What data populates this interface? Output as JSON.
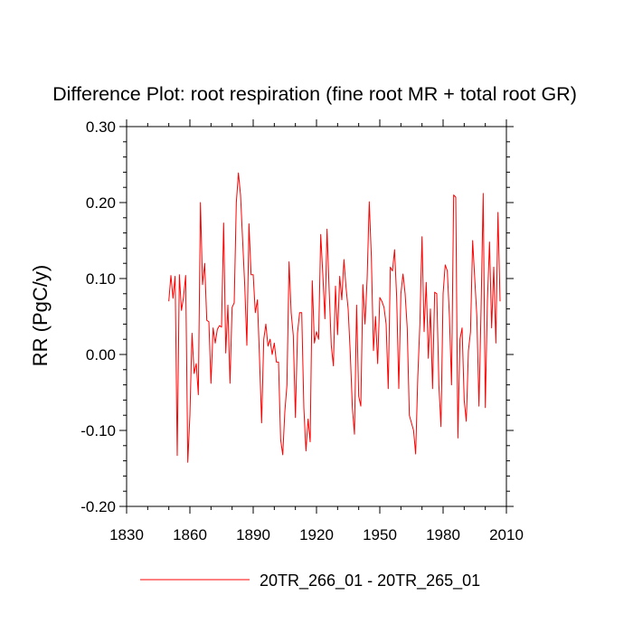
{
  "chart_data": {
    "type": "line",
    "title": "Difference Plot: root respiration (fine root MR + total root GR)",
    "xlabel": "",
    "ylabel": "RR  (PgC/y)",
    "xlim": [
      1830,
      2010
    ],
    "ylim": [
      -0.2,
      0.3
    ],
    "x_ticks": [
      1830,
      1860,
      1890,
      1920,
      1950,
      1980,
      2010
    ],
    "x_tick_labels": [
      "1830",
      "1860",
      "1890",
      "1920",
      "1950",
      "1980",
      "2010"
    ],
    "y_ticks": [
      -0.2,
      -0.1,
      0.0,
      0.1,
      0.2,
      0.3
    ],
    "y_tick_labels": [
      "-0.20",
      "-0.10",
      "0.00",
      "0.10",
      "0.20",
      "0.30"
    ],
    "grid": false,
    "legend_position": "bottom-center",
    "colors": {
      "series": "#ff0000",
      "axis": "#000000"
    },
    "series": [
      {
        "name": "20TR_266_01 - 20TR_265_01",
        "x_start": 1850,
        "x_step": 1,
        "values": [
          0.07,
          0.104,
          0.074,
          0.103,
          -0.133,
          0.105,
          0.058,
          0.076,
          0.104,
          -0.142,
          -0.08,
          0.028,
          -0.025,
          -0.012,
          -0.053,
          0.2,
          0.092,
          0.12,
          0.045,
          0.043,
          -0.038,
          0.035,
          0.015,
          0.033,
          0.038,
          0.036,
          0.173,
          0.002,
          0.065,
          -0.038,
          0.062,
          0.068,
          0.2,
          0.239,
          0.21,
          0.15,
          0.09,
          0.012,
          0.172,
          0.105,
          0.105,
          0.055,
          0.072,
          -0.005,
          -0.09,
          0.02,
          0.04,
          0.011,
          0.02,
          0.0,
          0.015,
          -0.01,
          -0.01,
          -0.112,
          -0.132,
          -0.075,
          -0.04,
          0.122,
          0.055,
          0.025,
          -0.083,
          0.028,
          0.055,
          0.055,
          -0.07,
          -0.127,
          -0.085,
          -0.115,
          0.097,
          0.015,
          0.03,
          0.02,
          0.158,
          0.105,
          0.047,
          0.165,
          0.085,
          0.012,
          -0.015,
          0.09,
          0.026,
          0.103,
          0.072,
          0.125,
          0.088,
          0.06,
          0.002,
          -0.07,
          -0.105,
          0.065,
          -0.055,
          -0.068,
          0.092,
          0.04,
          0.1,
          0.201,
          0.128,
          0.005,
          0.05,
          -0.012,
          0.075,
          0.07,
          0.062,
          0.04,
          -0.045,
          0.115,
          0.11,
          0.138,
          0.075,
          -0.045,
          0.08,
          0.106,
          0.08,
          0.035,
          -0.08,
          -0.09,
          -0.1,
          -0.131,
          -0.03,
          0.04,
          0.155,
          0.03,
          0.095,
          -0.005,
          0.06,
          -0.045,
          0.082,
          0.08,
          -0.04,
          -0.095,
          0.08,
          0.118,
          0.11,
          0.05,
          -0.04,
          0.21,
          0.207,
          -0.11,
          0.02,
          0.035,
          -0.06,
          -0.088,
          0.005,
          0.03,
          0.15,
          0.1,
          0.05,
          -0.068,
          0.06,
          0.212,
          -0.07,
          0.07,
          0.148,
          0.035,
          0.115,
          0.015,
          0.187,
          0.07
        ]
      }
    ]
  }
}
